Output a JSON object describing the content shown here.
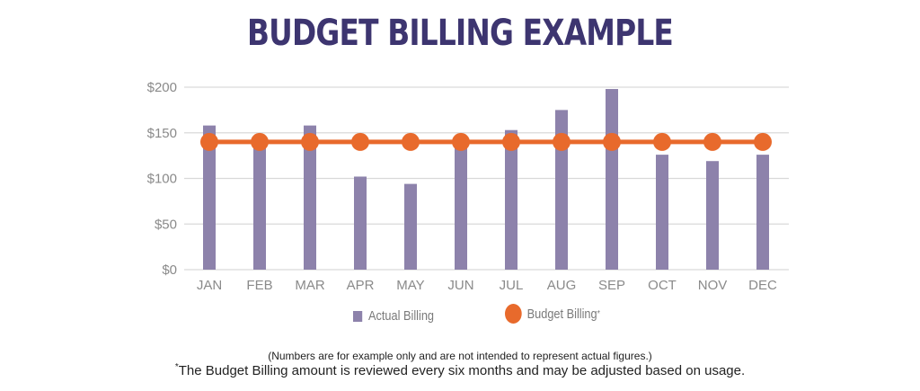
{
  "chart_data": {
    "type": "bar",
    "title": "BUDGET BILLING EXAMPLE",
    "categories": [
      "JAN",
      "FEB",
      "MAR",
      "APR",
      "MAY",
      "JUN",
      "JUL",
      "AUG",
      "SEP",
      "OCT",
      "NOV",
      "DEC"
    ],
    "series": [
      {
        "name": "Actual Billing",
        "type": "bar",
        "color": "#8d82ab",
        "values": [
          158,
          138,
          158,
          102,
          94,
          135,
          153,
          175,
          198,
          126,
          119,
          126
        ]
      },
      {
        "name": "Budget Billing",
        "type": "line",
        "color": "#e86a2c",
        "values": [
          140,
          140,
          140,
          140,
          140,
          140,
          140,
          140,
          140,
          140,
          140,
          140
        ]
      }
    ],
    "xlabel": "",
    "ylabel": "",
    "ylim": [
      0,
      200
    ],
    "yticks": [
      0,
      50,
      100,
      150,
      200
    ],
    "ytick_labels": [
      "$0",
      "$50",
      "$100",
      "$150",
      "$200"
    ],
    "grid": true,
    "legend_position": "bottom-center"
  },
  "legend": {
    "actual_label": "Actual Billing",
    "budget_label": "Budget Billing",
    "budget_marker": "*"
  },
  "notes": {
    "disclaimer": "(Numbers are for example only and are not intended to represent actual figures.)",
    "asterisk": "*",
    "footnote": "The Budget Billing amount is reviewed every six months and may be adjusted based on usage."
  }
}
